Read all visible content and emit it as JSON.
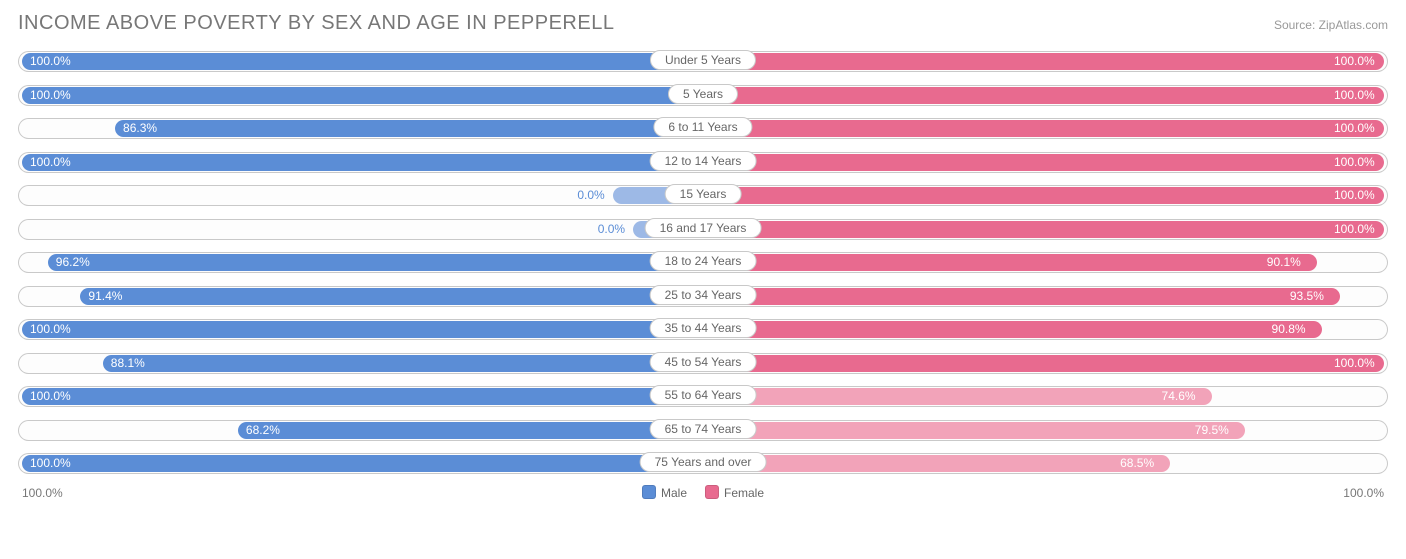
{
  "title": "INCOME ABOVE POVERTY BY SEX AND AGE IN PEPPERELL",
  "source": "Source: ZipAtlas.com",
  "colors": {
    "male": {
      "fill": "#5b8dd6",
      "light": "#9db9e6"
    },
    "female": {
      "fill": "#e86a8f",
      "light": "#f2a3b9"
    }
  },
  "legend": {
    "male": "Male",
    "female": "Female"
  },
  "axis": {
    "left": "100.0%",
    "right": "100.0%"
  },
  "rows": [
    {
      "age": "Under 5 Years",
      "male": 100.0,
      "female": 100.0
    },
    {
      "age": "5 Years",
      "male": 100.0,
      "female": 100.0
    },
    {
      "age": "6 to 11 Years",
      "male": 86.3,
      "female": 100.0
    },
    {
      "age": "12 to 14 Years",
      "male": 100.0,
      "female": 100.0
    },
    {
      "age": "15 Years",
      "male": 0.0,
      "female": 100.0,
      "male_stub": 13
    },
    {
      "age": "16 and 17 Years",
      "male": 0.0,
      "female": 100.0,
      "male_stub": 10
    },
    {
      "age": "18 to 24 Years",
      "male": 96.2,
      "female": 90.1
    },
    {
      "age": "25 to 34 Years",
      "male": 91.4,
      "female": 93.5
    },
    {
      "age": "35 to 44 Years",
      "male": 100.0,
      "female": 90.8
    },
    {
      "age": "45 to 54 Years",
      "male": 88.1,
      "female": 100.0
    },
    {
      "age": "55 to 64 Years",
      "male": 100.0,
      "female": 74.6
    },
    {
      "age": "65 to 74 Years",
      "male": 68.2,
      "female": 79.5
    },
    {
      "age": "75 Years and over",
      "male": 100.0,
      "female": 68.5
    }
  ]
}
